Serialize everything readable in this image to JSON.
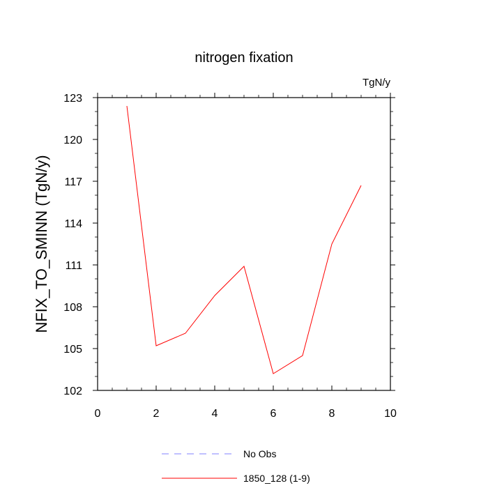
{
  "chart_data": {
    "type": "line",
    "title": "nitrogen fixation",
    "units_label": "TgN/y",
    "xlabel": "",
    "ylabel": "NFIX_TO_SMINN  (TgN/y)",
    "xlim": [
      0,
      10
    ],
    "ylim": [
      102,
      123
    ],
    "xticks": [
      0,
      2,
      4,
      6,
      8,
      10
    ],
    "yticks": [
      102,
      105,
      108,
      111,
      114,
      117,
      120,
      123
    ],
    "xtick_labels": [
      "0",
      "2",
      "4",
      "6",
      "8",
      "10"
    ],
    "ytick_labels": [
      "102",
      "105",
      "108",
      "111",
      "114",
      "117",
      "120",
      "123"
    ],
    "grid": false,
    "legend_position": "bottom",
    "series": [
      {
        "name": "No Obs",
        "color": "#8080ff",
        "dash": "dashed",
        "x": [],
        "values": []
      },
      {
        "name": "1850_128 (1-9)",
        "color": "#ff0000",
        "dash": "solid",
        "x": [
          1,
          2,
          3,
          4,
          5,
          6,
          7,
          8,
          9
        ],
        "values": [
          122.4,
          105.2,
          106.1,
          108.8,
          110.9,
          103.2,
          104.5,
          112.5,
          116.7
        ]
      }
    ]
  }
}
